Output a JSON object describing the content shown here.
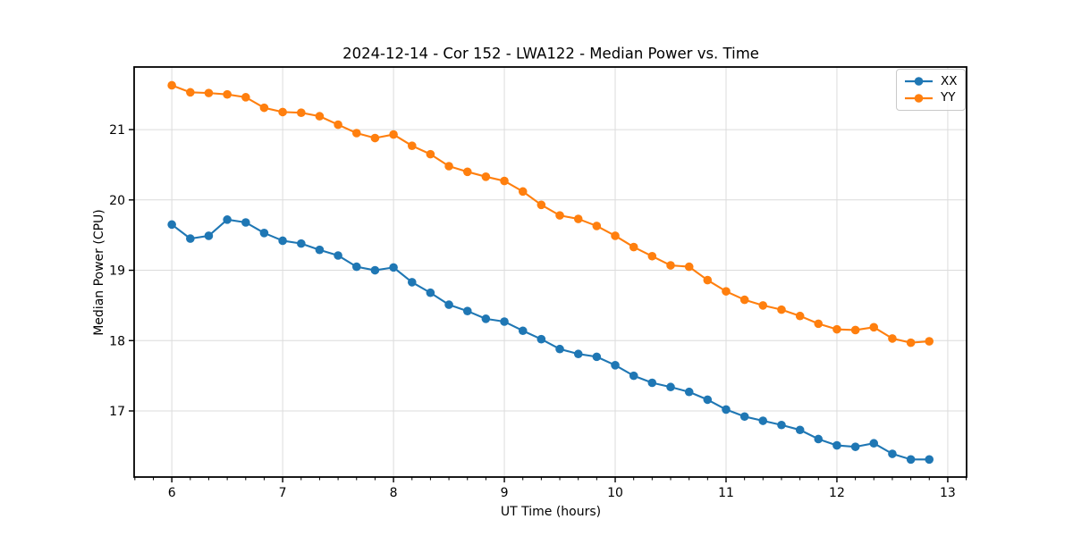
{
  "chart_data": {
    "type": "line",
    "title": "2024-12-14 - Cor 152 - LWA122 - Median Power vs. Time",
    "xlabel": "UT Time (hours)",
    "ylabel": "Median Power (CPU)",
    "xlim": [
      5.66,
      13.17
    ],
    "ylim": [
      16.06,
      21.89
    ],
    "x_ticks": [
      6,
      7,
      8,
      9,
      10,
      11,
      12,
      13
    ],
    "y_ticks": [
      17,
      18,
      19,
      20,
      21
    ],
    "x_minor_ticks_per_hour": 6,
    "grid": true,
    "grid_color": "#dcdcdc",
    "legend_position": "upper right",
    "marker": "circle",
    "x": [
      6.0,
      6.167,
      6.333,
      6.5,
      6.667,
      6.833,
      7.0,
      7.167,
      7.333,
      7.5,
      7.667,
      7.833,
      8.0,
      8.167,
      8.333,
      8.5,
      8.667,
      8.833,
      9.0,
      9.167,
      9.333,
      9.5,
      9.667,
      9.833,
      10.0,
      10.167,
      10.333,
      10.5,
      10.667,
      10.833,
      11.0,
      11.167,
      11.333,
      11.5,
      11.667,
      11.833,
      12.0,
      12.167,
      12.333,
      12.5,
      12.667,
      12.833
    ],
    "series": [
      {
        "name": "XX",
        "color": "#1f77b4",
        "values": [
          19.65,
          19.45,
          19.49,
          19.72,
          19.68,
          19.53,
          19.42,
          19.38,
          19.29,
          19.21,
          19.05,
          19.0,
          19.04,
          18.83,
          18.68,
          18.51,
          18.42,
          18.31,
          18.27,
          18.14,
          18.02,
          17.88,
          17.81,
          17.77,
          17.65,
          17.5,
          17.4,
          17.34,
          17.27,
          17.16,
          17.02,
          16.92,
          16.86,
          16.8,
          16.73,
          16.6,
          16.51,
          16.49,
          16.54,
          16.39,
          16.31,
          16.31
        ]
      },
      {
        "name": "YY",
        "color": "#ff7f0e",
        "values": [
          21.63,
          21.53,
          21.52,
          21.5,
          21.46,
          21.31,
          21.25,
          21.24,
          21.19,
          21.07,
          20.95,
          20.88,
          20.93,
          20.77,
          20.65,
          20.48,
          20.4,
          20.33,
          20.27,
          20.12,
          19.93,
          19.78,
          19.73,
          19.63,
          19.49,
          19.33,
          19.2,
          19.07,
          19.05,
          18.86,
          18.7,
          18.58,
          18.5,
          18.44,
          18.35,
          18.24,
          18.16,
          18.15,
          18.19,
          18.03,
          17.97,
          17.99
        ]
      }
    ]
  },
  "legend": {
    "items": [
      {
        "label": "XX",
        "color": "#1f77b4"
      },
      {
        "label": "YY",
        "color": "#ff7f0e"
      }
    ]
  }
}
